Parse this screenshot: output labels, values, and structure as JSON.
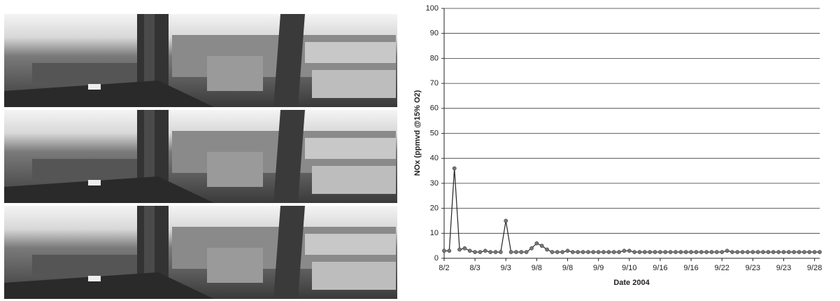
{
  "chart_data": {
    "type": "line",
    "ylabel": "NOx (ppmvd @15% O2)",
    "xlabel": "Date 2004",
    "categories": [
      "8/2",
      null,
      null,
      null,
      null,
      null,
      "8/3",
      null,
      null,
      null,
      null,
      null,
      "9/3",
      null,
      null,
      null,
      null,
      null,
      "9/8",
      null,
      null,
      null,
      null,
      null,
      "9/8",
      null,
      null,
      null,
      null,
      null,
      "9/9",
      null,
      null,
      null,
      null,
      null,
      "9/10",
      null,
      null,
      null,
      null,
      null,
      "9/16",
      null,
      null,
      null,
      null,
      null,
      "9/16",
      null,
      null,
      null,
      null,
      null,
      "9/22",
      null,
      null,
      null,
      null,
      null,
      "9/23",
      null,
      null,
      null,
      null,
      null,
      "9/23",
      null,
      null,
      null,
      null,
      null,
      "9/28",
      null
    ],
    "values": [
      3,
      3,
      36,
      3.5,
      4,
      3,
      2.5,
      2.5,
      3,
      2.5,
      2.5,
      2.5,
      15,
      2.5,
      2.5,
      2.5,
      2.5,
      4,
      6,
      5,
      3.5,
      2.5,
      2.5,
      2.5,
      3,
      2.5,
      2.5,
      2.5,
      2.5,
      2.5,
      2.5,
      2.5,
      2.5,
      2.5,
      2.5,
      3,
      3,
      2.5,
      2.5,
      2.5,
      2.5,
      2.5,
      2.5,
      2.5,
      2.5,
      2.5,
      2.5,
      2.5,
      2.5,
      2.5,
      2.5,
      2.5,
      2.5,
      2.5,
      2.5,
      3,
      2.5,
      2.5,
      2.5,
      2.5,
      2.5,
      2.5,
      2.5,
      2.5,
      2.5,
      2.5,
      2.5,
      2.5,
      2.5,
      2.5,
      2.5,
      2.5,
      2.5,
      2.5
    ],
    "color": "#222",
    "marker_color": "#777",
    "ylim": [
      0,
      100
    ],
    "yticks": [
      0,
      10,
      20,
      30,
      40,
      50,
      60,
      70,
      80,
      90,
      100
    ],
    "grid": true
  }
}
